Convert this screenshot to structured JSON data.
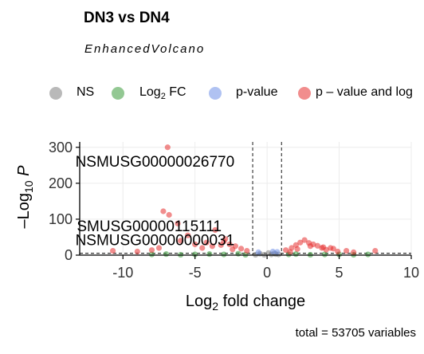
{
  "title": "DN3 vs DN4",
  "subtitle": "EnhancedVolcano",
  "caption": "total = 53705 variables",
  "legend": {
    "items": [
      {
        "label": "NS",
        "color": "#7f7f7f"
      },
      {
        "label": "Log",
        "sub": "2",
        "suffix": " FC",
        "color": "#3a9a3a"
      },
      {
        "label": "p-value",
        "color": "#6f8fe8"
      },
      {
        "label": "p – value and log",
        "color": "#e53030"
      }
    ]
  },
  "chart_data": {
    "type": "scatter",
    "title": "DN3 vs DN4",
    "subtitle": "EnhancedVolcano",
    "xlabel": "Log2 fold change",
    "ylabel": "–Log10 P",
    "xlim": [
      -13,
      10
    ],
    "ylim": [
      0,
      315
    ],
    "xticks": [
      -10,
      -5,
      0,
      5,
      10
    ],
    "yticks": [
      0,
      100,
      200,
      300
    ],
    "grid": true,
    "fc_cutoff_lines": [
      -1,
      1
    ],
    "p_cutoff_line": 5,
    "series": [
      {
        "name": "NS",
        "color": "#7f7f7f",
        "points": [
          [
            -0.2,
            1
          ],
          [
            0.3,
            2
          ],
          [
            0.6,
            3
          ],
          [
            -0.5,
            4
          ],
          [
            0.1,
            6
          ],
          [
            0.8,
            2
          ],
          [
            -0.8,
            1
          ],
          [
            0.5,
            5
          ]
        ]
      },
      {
        "name": "Log2 FC",
        "color": "#3a9a3a",
        "points": [
          [
            -8,
            2
          ],
          [
            -7,
            3
          ],
          [
            -6,
            1
          ],
          [
            -5,
            2
          ],
          [
            -4,
            3
          ],
          [
            -3,
            2
          ],
          [
            -2,
            4
          ],
          [
            -1.5,
            1
          ],
          [
            1.5,
            2
          ],
          [
            2,
            3
          ],
          [
            3,
            1
          ],
          [
            4,
            2
          ],
          [
            5,
            2
          ],
          [
            6,
            1
          ],
          [
            7,
            2
          ]
        ]
      },
      {
        "name": "p-value",
        "color": "#6f8fe8",
        "points": [
          [
            -0.6,
            8
          ],
          [
            0.4,
            10
          ],
          [
            0.7,
            9
          ]
        ]
      },
      {
        "name": "p – value and log",
        "color": "#e53030",
        "points": [
          [
            -6.9,
            300
          ],
          [
            -7.2,
            122
          ],
          [
            -6.8,
            112
          ],
          [
            -6.2,
            88
          ],
          [
            -5.5,
            55
          ],
          [
            -4.2,
            35
          ],
          [
            -3.6,
            70
          ],
          [
            -3,
            38
          ],
          [
            -2.6,
            30
          ],
          [
            -2.2,
            25
          ],
          [
            -1.8,
            18
          ],
          [
            -1.4,
            12
          ],
          [
            -10.7,
            12
          ],
          [
            -9,
            10
          ],
          [
            -8,
            14
          ],
          [
            -7.5,
            20
          ],
          [
            -6,
            40
          ],
          [
            -5,
            30
          ],
          [
            -4.5,
            20
          ],
          [
            -3.8,
            25
          ],
          [
            -3.2,
            28
          ],
          [
            -2.9,
            45
          ],
          [
            -2.4,
            16
          ],
          [
            1.3,
            14
          ],
          [
            1.7,
            20
          ],
          [
            2,
            28
          ],
          [
            2.3,
            35
          ],
          [
            2.6,
            42
          ],
          [
            2.9,
            34
          ],
          [
            3.2,
            30
          ],
          [
            3.5,
            26
          ],
          [
            3.8,
            20
          ],
          [
            4.1,
            15
          ],
          [
            4.4,
            20
          ],
          [
            4.9,
            10
          ],
          [
            5.5,
            12
          ],
          [
            6,
            8
          ],
          [
            7.5,
            12
          ],
          [
            3,
            25
          ],
          [
            2.1,
            17
          ],
          [
            1.6,
            9
          ],
          [
            4.6,
            18
          ],
          [
            3.9,
            22
          ]
        ]
      }
    ],
    "labels": [
      {
        "text": "NSMUSG00000026770",
        "x": -6.9,
        "y": 300,
        "lx": -13.3,
        "ly": 246
      },
      {
        "text": "SMUSG00000115111",
        "x": -7.2,
        "y": 122,
        "lx": -13.2,
        "ly": 66
      },
      {
        "text": "NSMUSG00000000031",
        "x": -6.8,
        "y": 112,
        "lx": -13.3,
        "ly": 28
      }
    ]
  }
}
